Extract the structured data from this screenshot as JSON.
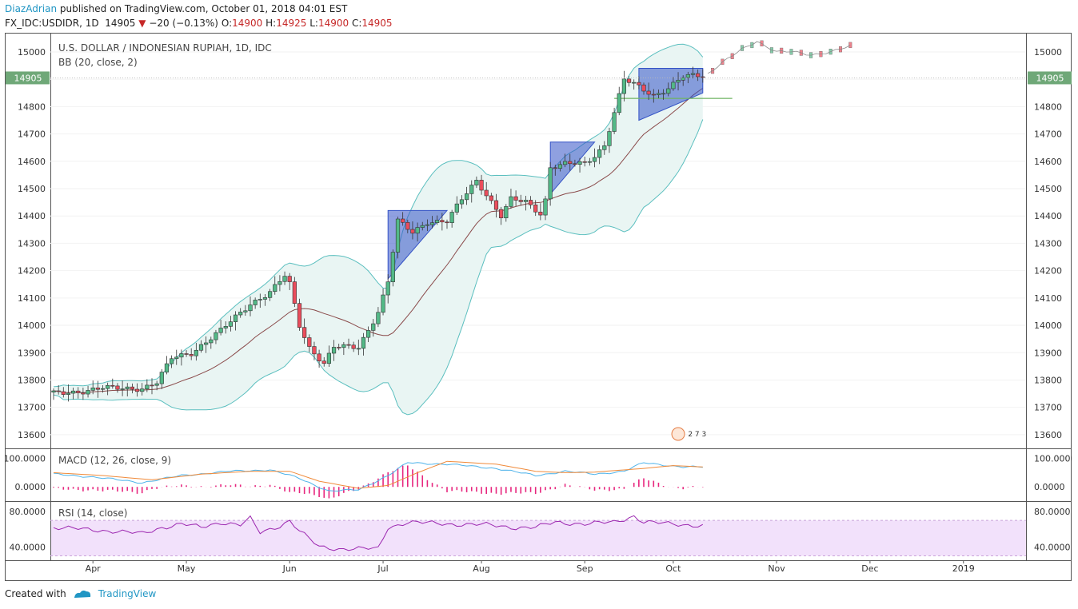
{
  "header": {
    "author": "DiazAdrian",
    "published_text": "published on TradingView.com, October 01, 2018 04:01 EST",
    "symbol": "FX_IDC:USDIDR, 1D",
    "last": "14905",
    "change": "−20 (−0.13%)",
    "open_label": "O:",
    "open": "14900",
    "high_label": "H:",
    "high": "14925",
    "low_label": "L:",
    "low": "14900",
    "close_label": "C:",
    "close": "14905"
  },
  "chart_data": [
    {
      "type": "candlestick",
      "title": "U.S. DOLLAR / INDONESIAN RUPIAH, 1D, IDC",
      "indicator": "BB (20, close, 2)",
      "ylim": [
        13550,
        15070
      ],
      "y_ticks": [
        "15000",
        "14900",
        "14800",
        "14700",
        "14600",
        "14500",
        "14400",
        "14300",
        "14200",
        "14100",
        "14000",
        "13900",
        "13800",
        "13700",
        "13600"
      ],
      "last_price_label": "14905",
      "x_labels": [
        "Apr",
        "May",
        "Jun",
        "Jul",
        "Aug",
        "Sep",
        "Oct",
        "Nov",
        "Dec",
        "2019"
      ],
      "keypoints": [
        [
          0,
          13750
        ],
        [
          6,
          13760
        ],
        [
          10,
          13770
        ],
        [
          18,
          13770
        ],
        [
          21,
          13790
        ],
        [
          24,
          13880
        ],
        [
          28,
          13900
        ],
        [
          34,
          13980
        ],
        [
          40,
          14080
        ],
        [
          44,
          14120
        ],
        [
          47,
          14180
        ],
        [
          48,
          14150
        ],
        [
          50,
          14000
        ],
        [
          52,
          13920
        ],
        [
          55,
          13860
        ],
        [
          57,
          13920
        ],
        [
          62,
          13920
        ],
        [
          66,
          14050
        ],
        [
          68,
          14160
        ],
        [
          70,
          14380
        ],
        [
          73,
          14340
        ],
        [
          76,
          14380
        ],
        [
          80,
          14380
        ],
        [
          83,
          14460
        ],
        [
          86,
          14530
        ],
        [
          88,
          14480
        ],
        [
          91,
          14400
        ],
        [
          93,
          14460
        ],
        [
          96,
          14450
        ],
        [
          99,
          14410
        ],
        [
          100,
          14460
        ],
        [
          101,
          14580
        ],
        [
          104,
          14590
        ],
        [
          108,
          14590
        ],
        [
          110,
          14620
        ],
        [
          112,
          14660
        ],
        [
          114,
          14780
        ],
        [
          116,
          14900
        ],
        [
          119,
          14870
        ],
        [
          122,
          14840
        ],
        [
          125,
          14870
        ],
        [
          128,
          14910
        ],
        [
          132,
          14910
        ]
      ],
      "forecast_keypoints": [
        [
          133,
          14920
        ],
        [
          136,
          14960
        ],
        [
          140,
          15010
        ],
        [
          143,
          15040
        ],
        [
          147,
          15000
        ],
        [
          150,
          15000
        ],
        [
          154,
          14990
        ],
        [
          158,
          15000
        ],
        [
          162,
          15020
        ]
      ],
      "patterns": [
        "triangle",
        "triangle",
        "triangle"
      ],
      "support_level": 14830,
      "events_label": "2 7 3"
    },
    {
      "type": "line",
      "title": "MACD (12, 26, close, 9)",
      "y_ticks": [
        "100.0000",
        "0.0000"
      ],
      "ylim": [
        -50,
        130
      ],
      "macd_keypoints": [
        [
          0,
          45
        ],
        [
          8,
          35
        ],
        [
          18,
          15
        ],
        [
          26,
          40
        ],
        [
          36,
          55
        ],
        [
          44,
          60
        ],
        [
          50,
          30
        ],
        [
          56,
          -15
        ],
        [
          62,
          -10
        ],
        [
          68,
          40
        ],
        [
          72,
          85
        ],
        [
          80,
          80
        ],
        [
          90,
          65
        ],
        [
          98,
          40
        ],
        [
          104,
          55
        ],
        [
          110,
          45
        ],
        [
          116,
          55
        ],
        [
          120,
          85
        ],
        [
          128,
          70
        ],
        [
          132,
          70
        ]
      ],
      "signal_keypoints": [
        [
          0,
          50
        ],
        [
          10,
          40
        ],
        [
          20,
          25
        ],
        [
          30,
          45
        ],
        [
          40,
          55
        ],
        [
          48,
          55
        ],
        [
          54,
          20
        ],
        [
          62,
          -5
        ],
        [
          68,
          5
        ],
        [
          74,
          50
        ],
        [
          80,
          90
        ],
        [
          90,
          80
        ],
        [
          98,
          55
        ],
        [
          104,
          50
        ],
        [
          110,
          52
        ],
        [
          120,
          65
        ],
        [
          126,
          75
        ],
        [
          132,
          70
        ]
      ]
    },
    {
      "type": "line",
      "title": "RSI (14, close)",
      "y_ticks": [
        "80.0000",
        "40.0000"
      ],
      "ylim": [
        25,
        90
      ],
      "band": [
        30,
        70
      ],
      "keypoints": [
        [
          0,
          62
        ],
        [
          6,
          60
        ],
        [
          12,
          58
        ],
        [
          18,
          55
        ],
        [
          22,
          62
        ],
        [
          26,
          66
        ],
        [
          30,
          62
        ],
        [
          34,
          68
        ],
        [
          38,
          65
        ],
        [
          40,
          72
        ],
        [
          42,
          56
        ],
        [
          46,
          64
        ],
        [
          48,
          70
        ],
        [
          50,
          58
        ],
        [
          54,
          40
        ],
        [
          58,
          38
        ],
        [
          62,
          38
        ],
        [
          66,
          38
        ],
        [
          68,
          62
        ],
        [
          72,
          68
        ],
        [
          80,
          66
        ],
        [
          88,
          65
        ],
        [
          94,
          62
        ],
        [
          98,
          62
        ],
        [
          102,
          68
        ],
        [
          108,
          66
        ],
        [
          114,
          68
        ],
        [
          118,
          75
        ],
        [
          120,
          68
        ],
        [
          126,
          66
        ],
        [
          132,
          64
        ]
      ]
    }
  ],
  "colors": {
    "up": "#53b987",
    "down": "#eb4d5c",
    "bb_fill": "#e9f5f3",
    "bb_band": "#5bbfbf",
    "basis": "#8a4a4a",
    "macd": "#4fb3ea",
    "signal": "#f08a3a",
    "hist": "#e7267e",
    "rsi": "#9c27b0",
    "rsi_band": "#f2e1fb",
    "triangle": "#3352c6",
    "support": "#6fb462",
    "accent": "#2196c4"
  },
  "footer": {
    "created_with": "Created with",
    "brand": "TradingView"
  }
}
